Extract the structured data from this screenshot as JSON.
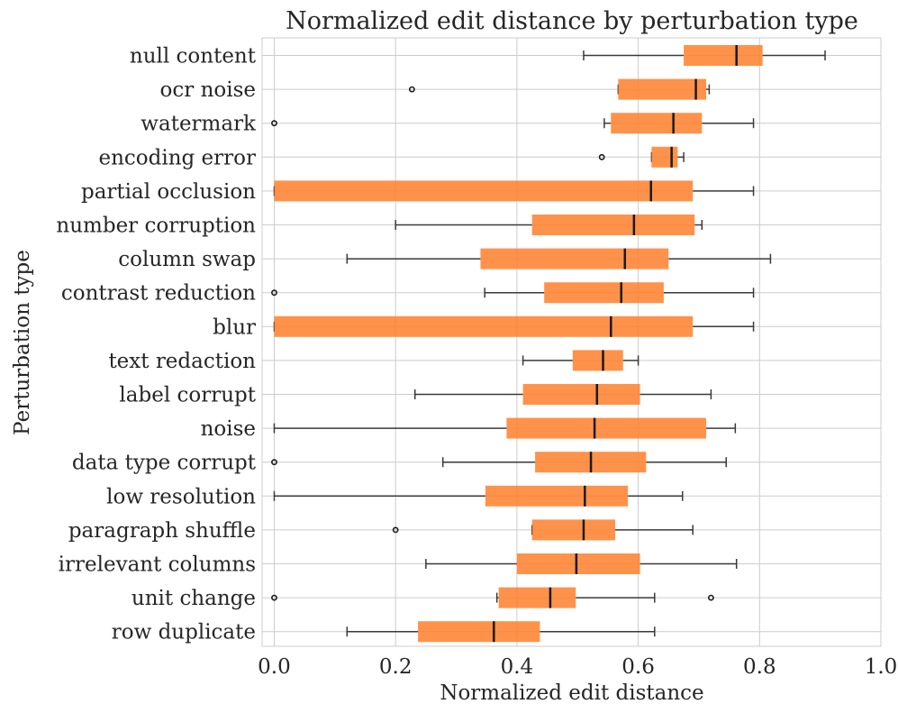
{
  "colors": {
    "box_fill": "#ff7f2a",
    "box_fill_opacity": 0.85,
    "whisker": "#3a3a3a",
    "median": "#1a1a1a",
    "grid": "#cccccc",
    "background": "#ffffff"
  },
  "chart_data": {
    "type": "box",
    "orientation": "horizontal",
    "title": "Normalized edit distance by perturbation type",
    "xlabel": "Normalized edit distance",
    "ylabel": "Perturbation type",
    "xlim": [
      -0.02,
      1.0
    ],
    "xticks": [
      0.0,
      0.2,
      0.4,
      0.6,
      0.8,
      1.0
    ],
    "xtick_labels": [
      "0.0",
      "0.2",
      "0.4",
      "0.6",
      "0.8",
      "1.0"
    ],
    "grid": true,
    "categories": [
      "null content",
      "ocr noise",
      "watermark",
      "encoding error",
      "partial occlusion",
      "number corruption",
      "column swap",
      "contrast reduction",
      "blur",
      "text redaction",
      "label corrupt",
      "noise",
      "data type corrupt",
      "low resolution",
      "paragraph shuffle",
      "irrelevant columns",
      "unit change",
      "row duplicate"
    ],
    "boxes": [
      {
        "min": 0.51,
        "q1": 0.675,
        "median": 0.762,
        "q3": 0.805,
        "max": 0.908,
        "outliers": []
      },
      {
        "min": 0.567,
        "q1": 0.567,
        "median": 0.695,
        "q3": 0.712,
        "max": 0.717,
        "outliers": [
          0.227
        ]
      },
      {
        "min": 0.544,
        "q1": 0.555,
        "median": 0.658,
        "q3": 0.705,
        "max": 0.79,
        "outliers": [
          0.0
        ]
      },
      {
        "min": 0.622,
        "q1": 0.622,
        "median": 0.655,
        "q3": 0.665,
        "max": 0.675,
        "outliers": [
          0.54
        ]
      },
      {
        "min": 0.0,
        "q1": 0.0,
        "median": 0.621,
        "q3": 0.69,
        "max": 0.79,
        "outliers": []
      },
      {
        "min": 0.2,
        "q1": 0.425,
        "median": 0.593,
        "q3": 0.693,
        "max": 0.705,
        "outliers": []
      },
      {
        "min": 0.12,
        "q1": 0.34,
        "median": 0.578,
        "q3": 0.65,
        "max": 0.818,
        "outliers": []
      },
      {
        "min": 0.347,
        "q1": 0.445,
        "median": 0.572,
        "q3": 0.642,
        "max": 0.79,
        "outliers": [
          0.0
        ]
      },
      {
        "min": 0.0,
        "q1": 0.0,
        "median": 0.555,
        "q3": 0.69,
        "max": 0.79,
        "outliers": []
      },
      {
        "min": 0.41,
        "q1": 0.492,
        "median": 0.542,
        "q3": 0.575,
        "max": 0.6,
        "outliers": []
      },
      {
        "min": 0.232,
        "q1": 0.41,
        "median": 0.532,
        "q3": 0.603,
        "max": 0.72,
        "outliers": []
      },
      {
        "min": 0.0,
        "q1": 0.383,
        "median": 0.528,
        "q3": 0.712,
        "max": 0.76,
        "outliers": []
      },
      {
        "min": 0.278,
        "q1": 0.43,
        "median": 0.522,
        "q3": 0.613,
        "max": 0.745,
        "outliers": [
          0.0
        ]
      },
      {
        "min": 0.0,
        "q1": 0.348,
        "median": 0.512,
        "q3": 0.583,
        "max": 0.673,
        "outliers": []
      },
      {
        "min": 0.425,
        "q1": 0.425,
        "median": 0.51,
        "q3": 0.562,
        "max": 0.69,
        "outliers": [
          0.2
        ]
      },
      {
        "min": 0.25,
        "q1": 0.4,
        "median": 0.498,
        "q3": 0.603,
        "max": 0.762,
        "outliers": []
      },
      {
        "min": 0.367,
        "q1": 0.37,
        "median": 0.455,
        "q3": 0.497,
        "max": 0.627,
        "outliers": [
          0.0,
          0.72
        ]
      },
      {
        "min": 0.12,
        "q1": 0.237,
        "median": 0.362,
        "q3": 0.438,
        "max": 0.627,
        "outliers": []
      }
    ]
  }
}
